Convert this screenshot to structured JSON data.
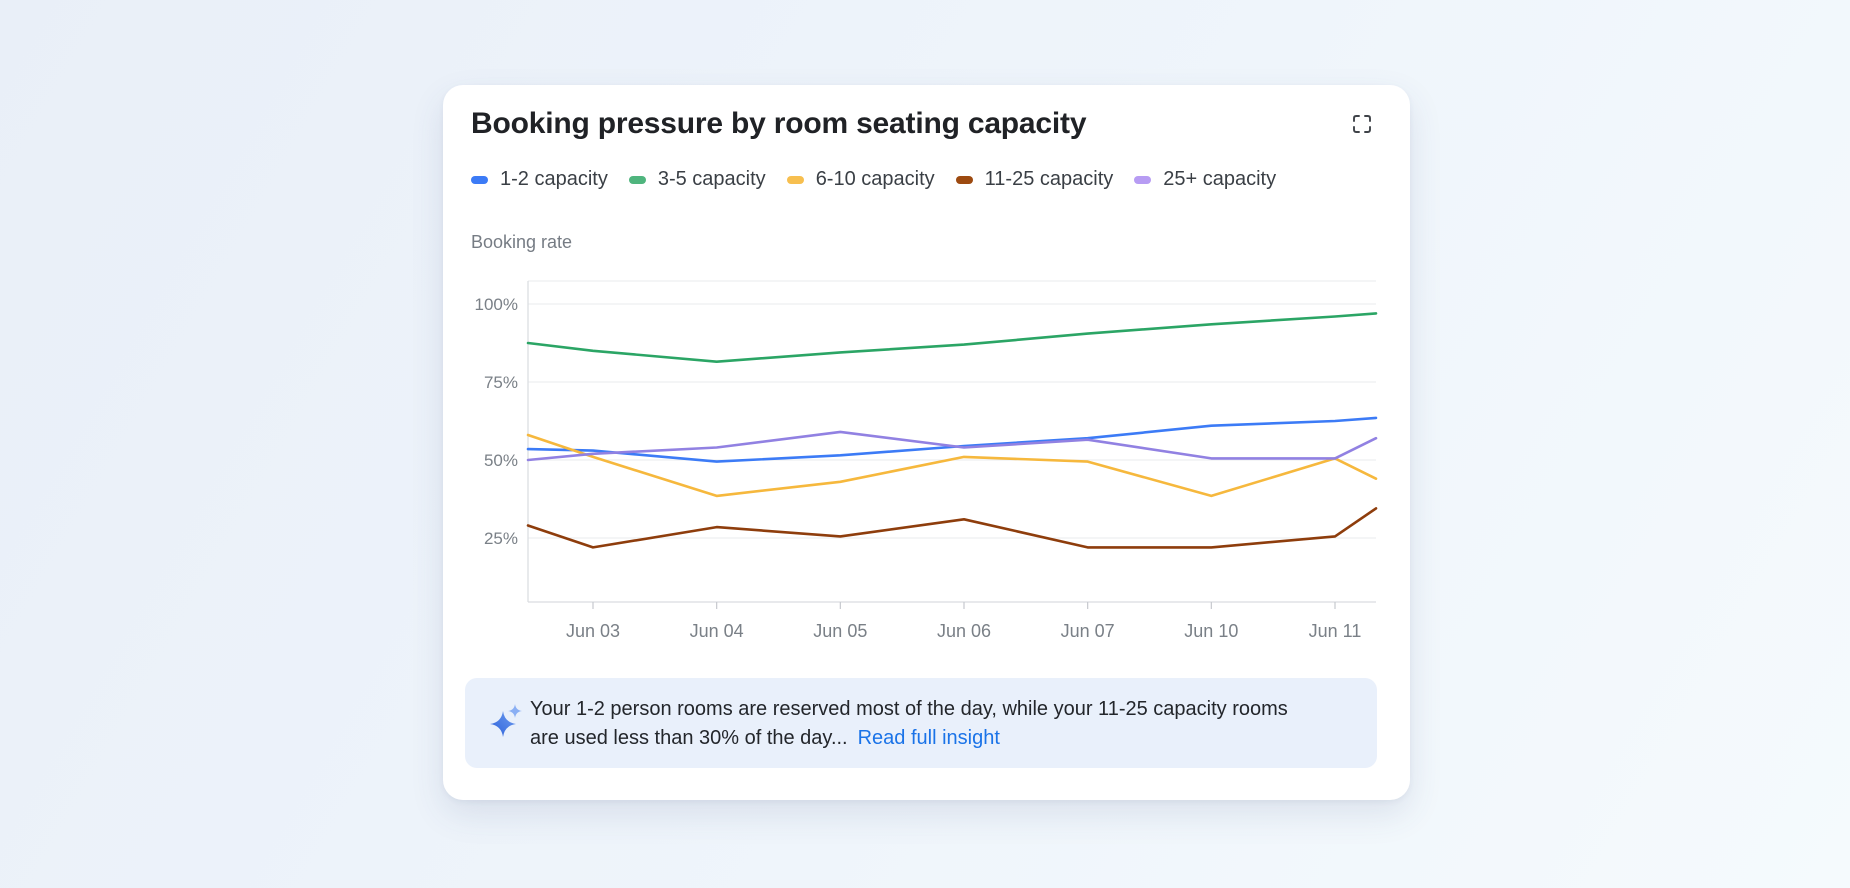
{
  "card": {
    "title": "Booking pressure by room seating capacity"
  },
  "chart_data": {
    "type": "line",
    "title": "Booking pressure by room seating capacity",
    "y_axis": {
      "label": "Booking rate",
      "tick_labels": [
        "100%",
        "75%",
        "50%",
        "25%"
      ],
      "tick_values": [
        100,
        75,
        50,
        25
      ],
      "visible_range": [
        4.5,
        107.5
      ],
      "grid": true
    },
    "x_axis": {
      "tick_labels": [
        "Jun 03",
        "Jun 04",
        "Jun 05",
        "Jun 06",
        "Jun 07",
        "Jun 10",
        "Jun 11"
      ]
    },
    "x_points": [
      "(left edge)",
      "Jun 03",
      "Jun 04",
      "Jun 05",
      "Jun 06",
      "Jun 07",
      "Jun 10",
      "Jun 11",
      "(right edge)"
    ],
    "legend_position": "top",
    "series": [
      {
        "name": "1-2 capacity",
        "color": "#3C7BF6",
        "swatch_color": "#3C7BF6",
        "values": [
          53.5,
          53,
          49.5,
          51.5,
          54.5,
          57,
          61,
          62.5,
          63.5
        ]
      },
      {
        "name": "3-5 capacity",
        "color": "#2BA565",
        "swatch_color": "#4FB57E",
        "values": [
          87.5,
          85,
          81.5,
          84.5,
          87,
          90.5,
          93.5,
          96,
          97
        ]
      },
      {
        "name": "6-10 capacity",
        "color": "#F6B83D",
        "swatch_color": "#F7BF4F",
        "values": [
          58,
          51,
          38.5,
          43,
          51,
          49.5,
          38.5,
          50.5,
          44
        ]
      },
      {
        "name": "11-25 capacity",
        "color": "#8E3D0C",
        "swatch_color": "#9D4A10",
        "values": [
          29,
          22,
          28.5,
          25.5,
          31,
          22,
          22,
          25.5,
          34.5
        ]
      },
      {
        "name": "25+ capacity",
        "color": "#9181E2",
        "swatch_color": "#B79CF3",
        "values": [
          50,
          52,
          54,
          59,
          54,
          56.5,
          50.5,
          50.5,
          57
        ]
      }
    ]
  },
  "insight": {
    "line1": "Your 1-2 person rooms are reserved most of the day, while your 11-25 capacity rooms",
    "line2": "are used less than 30% of the day...",
    "link_label": "Read full insight",
    "link_color": "#1A73E8"
  },
  "colors": {
    "grid_line": "#E9EBEE",
    "axis_line": "#D9DCE0",
    "tick_mark": "#C6C9CE",
    "axis_text": "#7A8087"
  }
}
